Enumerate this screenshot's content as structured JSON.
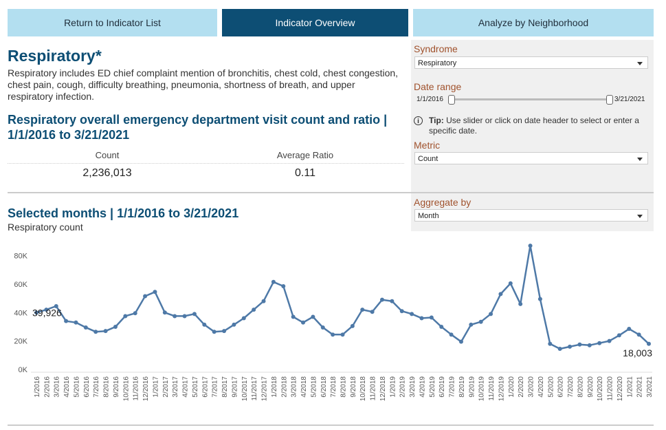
{
  "nav": {
    "tabs": [
      {
        "label": "Return to Indicator List",
        "active": false
      },
      {
        "label": "Indicator Overview",
        "active": true
      },
      {
        "label": "Analyze by Neighborhood",
        "active": false
      }
    ]
  },
  "header": {
    "title": "Respiratory*",
    "description": "Respiratory includes ED chief complaint mention of bronchitis, chest cold, chest congestion, chest pain, cough, difficulty breathing, pneumonia, shortness of breath, and upper respiratory infection."
  },
  "summary": {
    "title": "Respiratory overall emergency department visit count and ratio | 1/1/2016 to 3/21/2021",
    "count_label": "Count",
    "count_value": "2,236,013",
    "ratio_label": "Average Ratio",
    "ratio_value": "0.11"
  },
  "filters": {
    "syndrome_label": "Syndrome",
    "syndrome_value": "Respiratory",
    "date_range_label": "Date range",
    "date_start": "1/1/2016",
    "date_end": "3/21/2021",
    "tip_bold": "Tip:",
    "tip_text": "Use slider or click on date header to select or enter a specific date.",
    "tip_icon": "info-icon",
    "metric_label": "Metric",
    "metric_value": "Count",
    "aggregate_label": "Aggregate by",
    "aggregate_value": "Month"
  },
  "colors": {
    "brand_dark": "#0d4e74",
    "tab_light": "#b3dff0",
    "line": "#4e79a7",
    "filter_label": "#a0522d"
  },
  "chart": {
    "title": "Selected months | 1/1/2016 to 3/21/2021",
    "subtitle": "Respiratory count"
  },
  "chart_data": {
    "type": "line",
    "ylim": [
      0,
      88000
    ],
    "yticks": [
      0,
      20000,
      40000,
      60000,
      80000
    ],
    "ytick_labels": [
      "0K",
      "20K",
      "40K",
      "60K",
      "80K"
    ],
    "first_label": "39,926",
    "last_label": "18,003",
    "categories": [
      "1/2016",
      "2/2016",
      "3/2016",
      "4/2016",
      "5/2016",
      "6/2016",
      "7/2016",
      "8/2016",
      "9/2016",
      "10/2016",
      "11/2016",
      "12/2016",
      "1/2017",
      "2/2017",
      "3/2017",
      "4/2017",
      "5/2017",
      "6/2017",
      "7/2017",
      "8/2017",
      "9/2017",
      "10/2017",
      "11/2017",
      "12/2017",
      "1/2018",
      "2/2018",
      "3/2018",
      "4/2018",
      "5/2018",
      "6/2018",
      "7/2018",
      "8/2018",
      "9/2018",
      "10/2018",
      "11/2018",
      "12/2018",
      "1/2019",
      "2/2019",
      "3/2019",
      "4/2019",
      "5/2019",
      "6/2019",
      "7/2019",
      "8/2019",
      "9/2019",
      "10/2019",
      "11/2019",
      "12/2019",
      "1/2020",
      "2/2020",
      "3/2020",
      "4/2020",
      "5/2020",
      "6/2020",
      "7/2020",
      "8/2020",
      "9/2020",
      "10/2020",
      "11/2020",
      "12/2020",
      "1/2021",
      "2/2021",
      "3/2021"
    ],
    "values": [
      39926,
      42000,
      44500,
      34000,
      33000,
      29500,
      26500,
      27000,
      30000,
      37500,
      39500,
      51500,
      54500,
      40000,
      37500,
      37500,
      39000,
      31500,
      26500,
      27000,
      31500,
      36000,
      42000,
      48000,
      61500,
      58500,
      37000,
      33000,
      37000,
      29500,
      24500,
      24500,
      30500,
      42000,
      40500,
      49000,
      48000,
      41000,
      39000,
      36000,
      36500,
      30000,
      24500,
      19500,
      31500,
      33500,
      39000,
      53000,
      60500,
      46000,
      87000,
      49500,
      18000,
      14500,
      16000,
      17500,
      17000,
      18500,
      20000,
      24000,
      28500,
      24500,
      18003
    ]
  }
}
